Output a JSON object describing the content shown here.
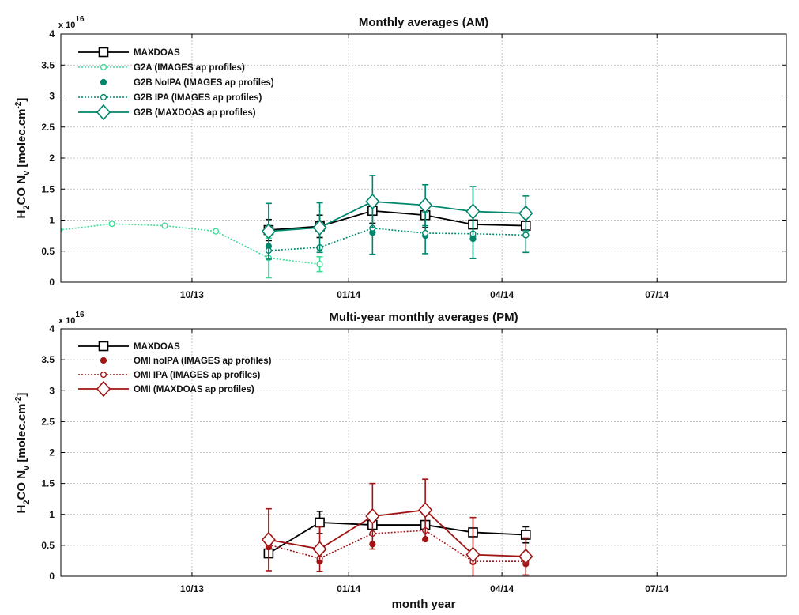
{
  "colors": {
    "maxdoas": "#000000",
    "g2a": "#3ddc97",
    "g2b": "#00876c",
    "omi": "#a01515",
    "grid": "#b4b4b4"
  },
  "xlabel": "month year",
  "chart_data": [
    {
      "type": "line",
      "title": "Monthly averages (AM)",
      "ylabel_main": "H",
      "ylabel_sub1": "2",
      "ylabel_mid": "CO N",
      "ylabel_sub2": "v",
      "ylabel_unit": " [molec.cm",
      "ylabel_sup": "-2",
      "ylabel_end": "]",
      "exponent_base": "x 10",
      "exponent_power": "16",
      "xlim": [
        "2013-07-16",
        "2014-09-15"
      ],
      "ylim": [
        0,
        4
      ],
      "yticks": [
        0,
        0.5,
        1,
        1.5,
        2,
        2.5,
        3,
        3.5,
        4
      ],
      "ytick_labels": [
        "0",
        "0.5",
        "1",
        "1.5",
        "2",
        "2.5",
        "3",
        "3.5",
        "4"
      ],
      "xticks": [
        "2013-10-01",
        "2014-01-01",
        "2014-04-01",
        "2014-07-01"
      ],
      "xtick_labels": [
        "10/13",
        "01/14",
        "04/14",
        "07/14"
      ],
      "grid": true,
      "legend_position": "top-left",
      "series": [
        {
          "name": "MAXDOAS",
          "color_key": "maxdoas",
          "style": "solid",
          "marker": "square",
          "x": [
            "2013-11-15",
            "2013-12-15",
            "2014-01-15",
            "2014-02-15",
            "2014-03-15",
            "2014-04-15"
          ],
          "y": [
            0.84,
            0.9,
            1.15,
            1.08,
            0.93,
            0.91
          ],
          "err": [
            0.17,
            0.18,
            0.2,
            0.2,
            0.07,
            0.06
          ]
        },
        {
          "name": "G2A (IMAGES ap profiles)",
          "color_key": "g2a",
          "style": "dotted",
          "marker": "circle-open",
          "x": [
            "2013-07-15",
            "2013-08-15",
            "2013-09-15",
            "2013-10-15",
            "2013-11-15",
            "2013-12-15"
          ],
          "y": [
            0.84,
            0.94,
            0.91,
            0.82,
            0.39,
            0.29
          ],
          "err": [
            0,
            0,
            0,
            0,
            0.32,
            0.12
          ]
        },
        {
          "name": "G2B NoIPA (IMAGES ap profiles)",
          "color_key": "g2b",
          "style": "none",
          "marker": "dot",
          "x": [
            "2013-11-15",
            "2013-12-15",
            "2014-01-15",
            "2014-02-15",
            "2014-03-15",
            "2014-04-15"
          ],
          "y": [
            0.58,
            0.55,
            0.8,
            0.75,
            0.7,
            0.76
          ],
          "err": []
        },
        {
          "name": "G2B IPA (IMAGES ap profiles)",
          "color_key": "g2b",
          "style": "dotted",
          "marker": "circle-open",
          "x": [
            "2013-11-15",
            "2013-12-15",
            "2014-01-15",
            "2014-02-15",
            "2014-03-15",
            "2014-04-15"
          ],
          "y": [
            0.51,
            0.56,
            0.87,
            0.79,
            0.78,
            0.76
          ],
          "err": [
            0,
            0,
            0.42,
            0.33,
            0.4,
            0.28
          ]
        },
        {
          "name": "G2B (MAXDOAS ap profiles)",
          "color_key": "g2b",
          "style": "solid",
          "marker": "diamond",
          "x": [
            "2013-11-15",
            "2013-12-15",
            "2014-01-15",
            "2014-02-15",
            "2014-03-15",
            "2014-04-15"
          ],
          "y": [
            0.82,
            0.88,
            1.3,
            1.24,
            1.14,
            1.11
          ],
          "err": [
            0.45,
            0.4,
            0.42,
            0.33,
            0.4,
            0.28
          ]
        }
      ]
    },
    {
      "type": "line",
      "title": "Multi-year monthly averages (PM)",
      "ylabel_main": "H",
      "ylabel_sub1": "2",
      "ylabel_mid": "CO N",
      "ylabel_sub2": "v",
      "ylabel_unit": " [molec.cm",
      "ylabel_sup": "-2",
      "ylabel_end": "]",
      "exponent_base": "x 10",
      "exponent_power": "16",
      "xlim": [
        "2013-07-16",
        "2014-09-15"
      ],
      "ylim": [
        0,
        4
      ],
      "yticks": [
        0,
        0.5,
        1,
        1.5,
        2,
        2.5,
        3,
        3.5,
        4
      ],
      "ytick_labels": [
        "0",
        "0.5",
        "1",
        "1.5",
        "2",
        "2.5",
        "3",
        "3.5",
        "4"
      ],
      "xticks": [
        "2013-10-01",
        "2014-01-01",
        "2014-04-01",
        "2014-07-01"
      ],
      "xtick_labels": [
        "10/13",
        "01/14",
        "04/14",
        "07/14"
      ],
      "grid": true,
      "legend_position": "top-left",
      "series": [
        {
          "name": "MAXDOAS",
          "color_key": "maxdoas",
          "style": "solid",
          "marker": "square",
          "x": [
            "2013-11-15",
            "2013-12-15",
            "2014-01-15",
            "2014-02-15",
            "2014-03-15",
            "2014-04-15"
          ],
          "y": [
            0.37,
            0.87,
            0.83,
            0.83,
            0.71,
            0.67
          ],
          "err": [
            0,
            0.18,
            0,
            0,
            0,
            0.13
          ]
        },
        {
          "name": "OMI noIPA (IMAGES ap profiles)",
          "color_key": "omi",
          "style": "none",
          "marker": "dot",
          "x": [
            "2013-11-15",
            "2013-12-15",
            "2014-01-15",
            "2014-02-15",
            "2014-03-15",
            "2014-04-15"
          ],
          "y": [
            0.47,
            0.24,
            0.52,
            0.6,
            0.23,
            0.2
          ],
          "err": []
        },
        {
          "name": "OMI IPA (IMAGES ap profiles)",
          "color_key": "omi",
          "style": "dotted",
          "marker": "circle-open",
          "x": [
            "2013-11-15",
            "2013-12-15",
            "2014-01-15",
            "2014-02-15",
            "2014-03-15",
            "2014-04-15"
          ],
          "y": [
            0.51,
            0.29,
            0.69,
            0.74,
            0.24,
            0.24
          ],
          "err": []
        },
        {
          "name": "OMI (MAXDOAS ap profiles)",
          "color_key": "omi",
          "style": "solid",
          "marker": "diamond",
          "x": [
            "2013-11-15",
            "2013-12-15",
            "2014-01-15",
            "2014-02-15",
            "2014-03-15",
            "2014-04-15"
          ],
          "y": [
            0.59,
            0.44,
            0.97,
            1.07,
            0.35,
            0.32
          ],
          "err": [
            0.5,
            0.36,
            0.53,
            0.5,
            0.6,
            0.3
          ]
        }
      ]
    }
  ]
}
